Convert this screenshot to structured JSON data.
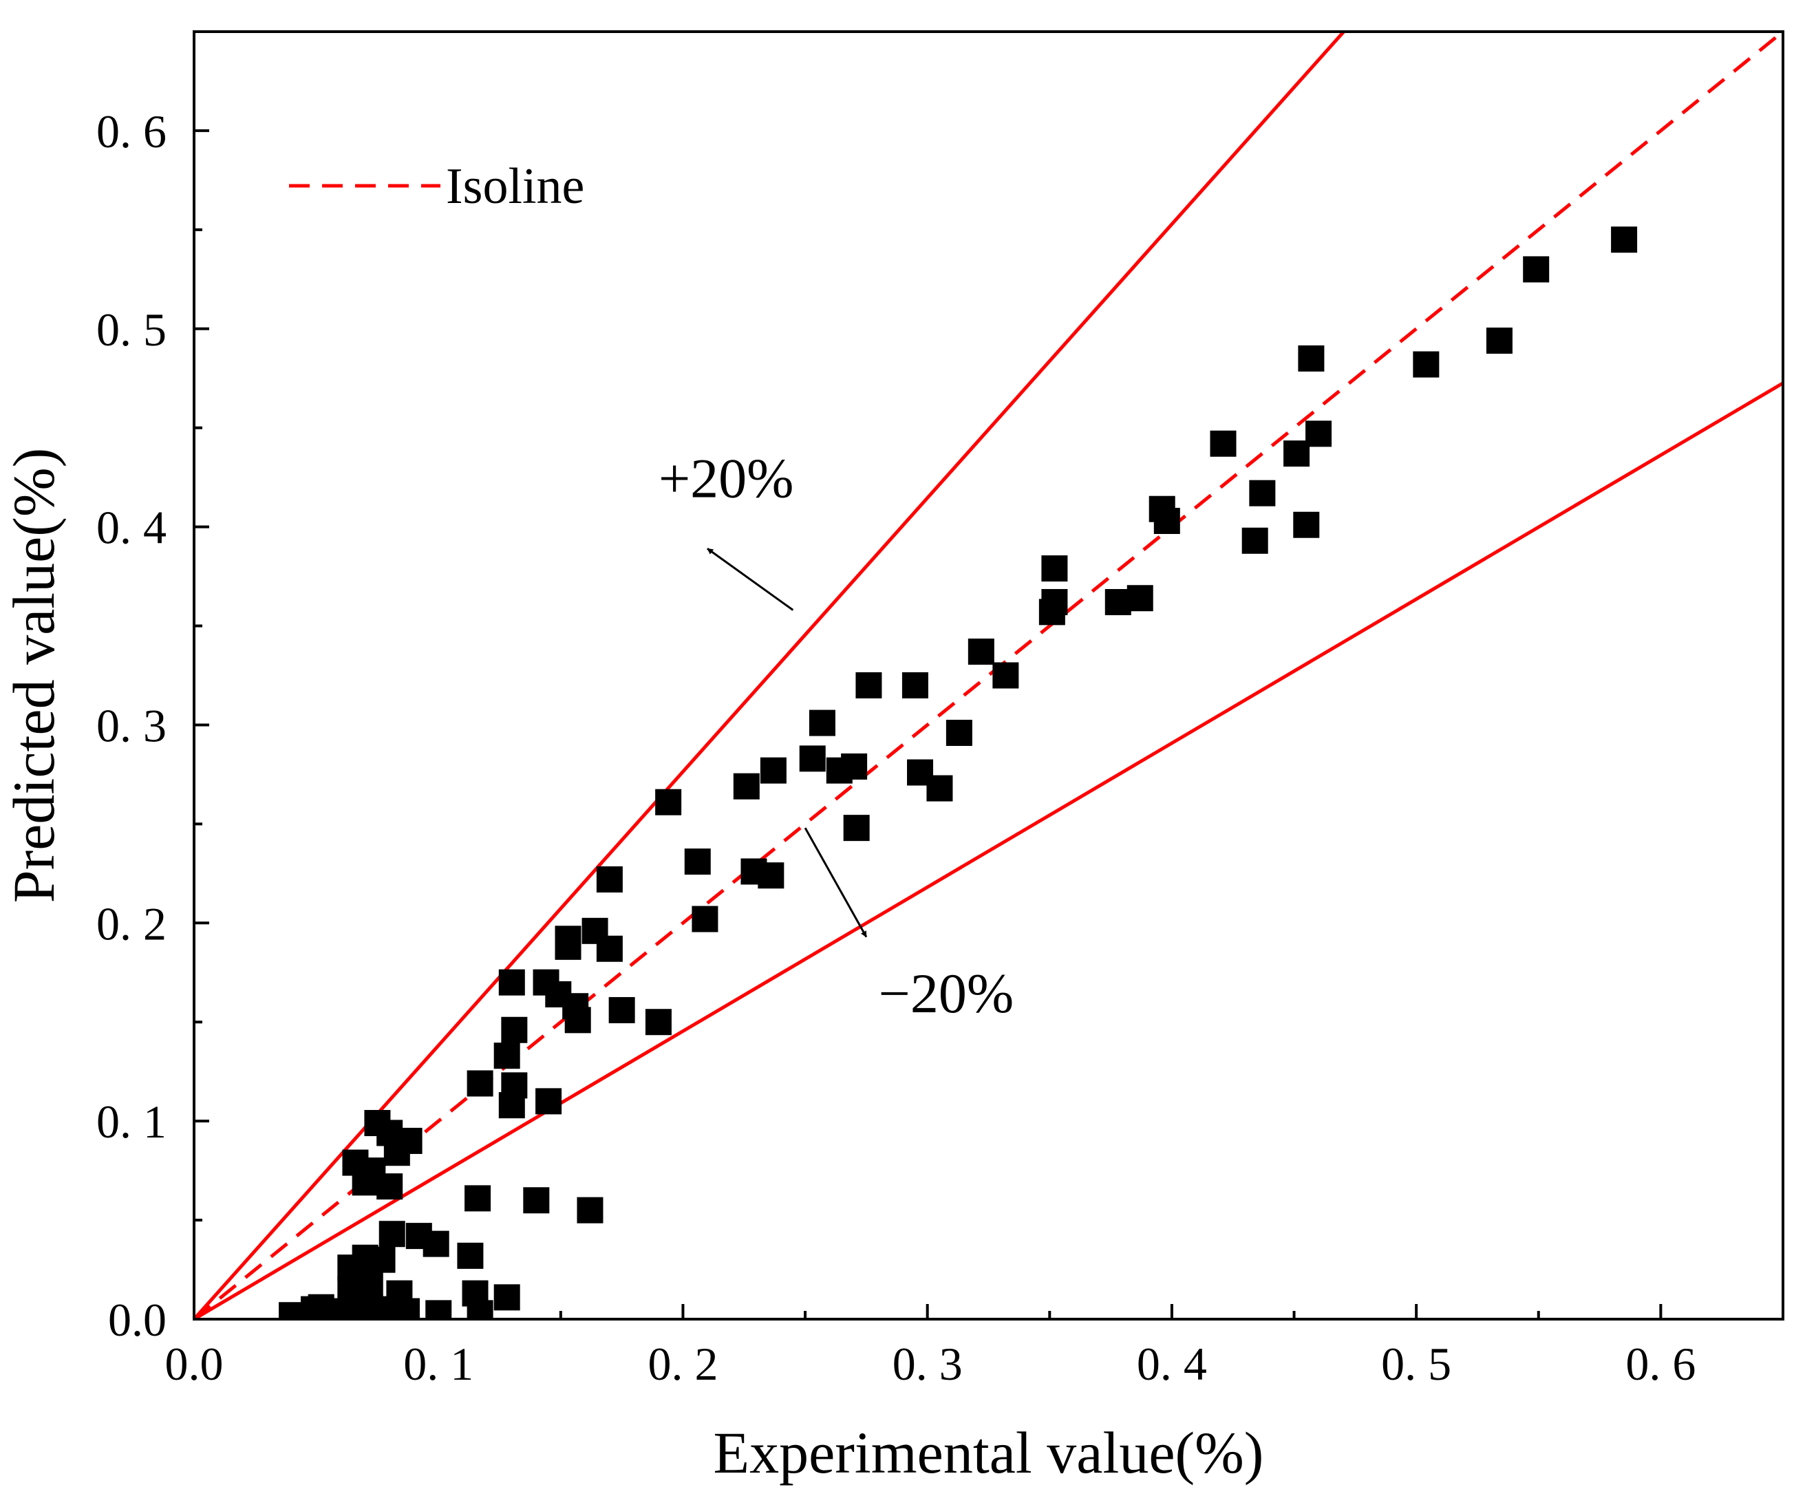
{
  "chart_data": {
    "type": "scatter",
    "title": "",
    "xlabel": "Experimental value(%)",
    "ylabel": "Predicted value(%)",
    "xlim": [
      0,
      0.65
    ],
    "ylim": [
      0,
      0.65
    ],
    "x_ticks": [
      0,
      0.1,
      0.2,
      0.3,
      0.4,
      0.5,
      0.6
    ],
    "y_ticks": [
      0,
      0.1,
      0.2,
      0.3,
      0.4,
      0.5,
      0.6
    ],
    "x_tick_labels": [
      "0.0",
      "0. 1",
      "0. 2",
      "0. 3",
      "0. 4",
      "0. 5",
      "0. 6"
    ],
    "y_tick_labels": [
      "0.0",
      "0. 1",
      "0. 2",
      "0. 3",
      "0. 4",
      "0. 5",
      "0. 6"
    ],
    "legend": {
      "position": "top-left",
      "entries": [
        {
          "label": "Isoline",
          "style": "dashed",
          "color": "#ff0000"
        }
      ]
    },
    "lines": [
      {
        "name": "Isoline",
        "slope": 1.0,
        "style": "dashed",
        "color": "#ff0000"
      },
      {
        "name": "+20%",
        "slope": 1.382,
        "style": "solid",
        "color": "#ff0000"
      },
      {
        "name": "-20%",
        "slope": 0.727,
        "style": "solid",
        "color": "#ff0000"
      }
    ],
    "annotations": [
      {
        "text": "+20%",
        "arrow_from": [
          0.245,
          0.358
        ],
        "arrow_to": [
          0.21,
          0.389
        ],
        "text_at": [
          0.19,
          0.415
        ]
      },
      {
        "text": "−20%",
        "arrow_from": [
          0.25,
          0.248
        ],
        "arrow_to": [
          0.275,
          0.193
        ],
        "text_at": [
          0.28,
          0.155
        ]
      }
    ],
    "marker": {
      "shape": "square",
      "color": "#000000"
    },
    "series": [
      {
        "name": "data",
        "points": [
          [
            0.585,
            0.545
          ],
          [
            0.549,
            0.53
          ],
          [
            0.534,
            0.494
          ],
          [
            0.504,
            0.482
          ],
          [
            0.457,
            0.485
          ],
          [
            0.46,
            0.447
          ],
          [
            0.451,
            0.437
          ],
          [
            0.455,
            0.401
          ],
          [
            0.421,
            0.442
          ],
          [
            0.437,
            0.417
          ],
          [
            0.434,
            0.393
          ],
          [
            0.396,
            0.409
          ],
          [
            0.398,
            0.403
          ],
          [
            0.387,
            0.364
          ],
          [
            0.378,
            0.362
          ],
          [
            0.352,
            0.379
          ],
          [
            0.352,
            0.362
          ],
          [
            0.351,
            0.357
          ],
          [
            0.322,
            0.337
          ],
          [
            0.332,
            0.325
          ],
          [
            0.313,
            0.296
          ],
          [
            0.305,
            0.268
          ],
          [
            0.295,
            0.32
          ],
          [
            0.297,
            0.276
          ],
          [
            0.276,
            0.32
          ],
          [
            0.253,
            0.283
          ],
          [
            0.257,
            0.301
          ],
          [
            0.264,
            0.277
          ],
          [
            0.27,
            0.279
          ],
          [
            0.271,
            0.248
          ],
          [
            0.237,
            0.277
          ],
          [
            0.226,
            0.269
          ],
          [
            0.229,
            0.226
          ],
          [
            0.236,
            0.224
          ],
          [
            0.206,
            0.231
          ],
          [
            0.209,
            0.202
          ],
          [
            0.194,
            0.261
          ],
          [
            0.19,
            0.15
          ],
          [
            0.17,
            0.222
          ],
          [
            0.17,
            0.187
          ],
          [
            0.164,
            0.196
          ],
          [
            0.175,
            0.156
          ],
          [
            0.153,
            0.192
          ],
          [
            0.153,
            0.188
          ],
          [
            0.156,
            0.158
          ],
          [
            0.157,
            0.151
          ],
          [
            0.149,
            0.164
          ],
          [
            0.144,
            0.17
          ],
          [
            0.145,
            0.11
          ],
          [
            0.13,
            0.17
          ],
          [
            0.131,
            0.146
          ],
          [
            0.128,
            0.133
          ],
          [
            0.131,
            0.118
          ],
          [
            0.13,
            0.108
          ],
          [
            0.117,
            0.119
          ],
          [
            0.116,
            0.061
          ],
          [
            0.14,
            0.06
          ],
          [
            0.162,
            0.055
          ],
          [
            0.075,
            0.099
          ],
          [
            0.08,
            0.094
          ],
          [
            0.088,
            0.09
          ],
          [
            0.083,
            0.084
          ],
          [
            0.066,
            0.079
          ],
          [
            0.073,
            0.075
          ],
          [
            0.08,
            0.067
          ],
          [
            0.07,
            0.069
          ],
          [
            0.081,
            0.043
          ],
          [
            0.092,
            0.042
          ],
          [
            0.099,
            0.038
          ],
          [
            0.113,
            0.032
          ],
          [
            0.064,
            0.026
          ],
          [
            0.07,
            0.031
          ],
          [
            0.077,
            0.03
          ],
          [
            0.064,
            0.015
          ],
          [
            0.072,
            0.018
          ],
          [
            0.084,
            0.013
          ],
          [
            0.115,
            0.013
          ],
          [
            0.128,
            0.011
          ],
          [
            0.07,
            0.006
          ],
          [
            0.078,
            0.005
          ],
          [
            0.087,
            0.004
          ],
          [
            0.1,
            0.003
          ],
          [
            0.117,
            0.003
          ],
          [
            0.04,
            0.002
          ],
          [
            0.049,
            0.005
          ],
          [
            0.052,
            0.006
          ],
          [
            0.057,
            0.004
          ],
          [
            0.061,
            0.002
          ]
        ]
      }
    ]
  }
}
